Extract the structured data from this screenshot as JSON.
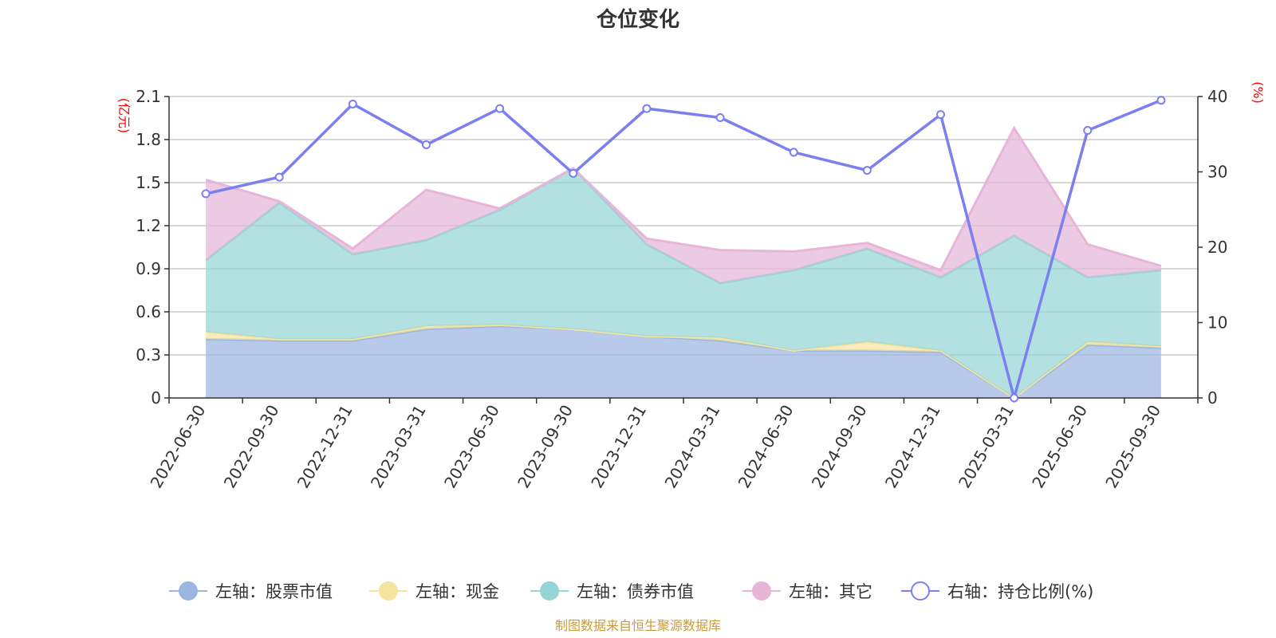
{
  "chart_data": {
    "type": "area",
    "title": "仓位变化",
    "source": "制图数据来自恒生聚源数据库",
    "left_axis": {
      "unit": "(亿元)",
      "range": [
        0,
        2.1
      ],
      "ticks": [
        "0",
        "0.3",
        "0.6",
        "0.9",
        "1.2",
        "1.5",
        "1.8",
        "2.1"
      ]
    },
    "right_axis": {
      "unit": "(%)",
      "range": [
        0,
        40
      ],
      "ticks": [
        "0",
        "10",
        "20",
        "30",
        "40"
      ]
    },
    "categories": [
      "2022-06-30",
      "2022-09-30",
      "2022-12-31",
      "2023-03-31",
      "2023-06-30",
      "2023-09-30",
      "2023-12-31",
      "2024-03-31",
      "2024-06-30",
      "2024-09-30",
      "2024-12-31",
      "2025-03-31",
      "2025-06-30",
      "2025-09-30"
    ],
    "stacked_area_series": [
      {
        "name": "左轴：股票市值",
        "color": "#9bb6e0",
        "values": [
          0.41,
          0.4,
          0.4,
          0.48,
          0.5,
          0.48,
          0.43,
          0.4,
          0.33,
          0.33,
          0.32,
          0.0,
          0.37,
          0.35
        ]
      },
      {
        "name": "左轴：现金",
        "color": "#f5e4a0",
        "values": [
          0.05,
          0.01,
          0.01,
          0.02,
          0.01,
          0.0,
          0.0,
          0.02,
          0.0,
          0.06,
          0.01,
          0.0,
          0.02,
          0.01
        ]
      },
      {
        "name": "左轴：债券市值",
        "color": "#96d5d5",
        "values": [
          0.5,
          0.95,
          0.59,
          0.6,
          0.8,
          1.12,
          0.64,
          0.38,
          0.56,
          0.65,
          0.51,
          1.13,
          0.45,
          0.53
        ]
      },
      {
        "name": "左轴：其它",
        "color": "#e6b5d8",
        "values": [
          0.56,
          0.01,
          0.04,
          0.35,
          0.01,
          0.0,
          0.04,
          0.23,
          0.13,
          0.04,
          0.05,
          0.75,
          0.23,
          0.03
        ]
      }
    ],
    "line_series": {
      "name": "右轴：持仓比例(%)",
      "color": "#7b7fef",
      "axis": "right",
      "values": [
        27.1,
        29.3,
        39.0,
        33.6,
        38.4,
        29.8,
        38.4,
        37.2,
        32.6,
        30.2,
        37.6,
        0.0,
        35.5,
        39.5
      ]
    }
  }
}
